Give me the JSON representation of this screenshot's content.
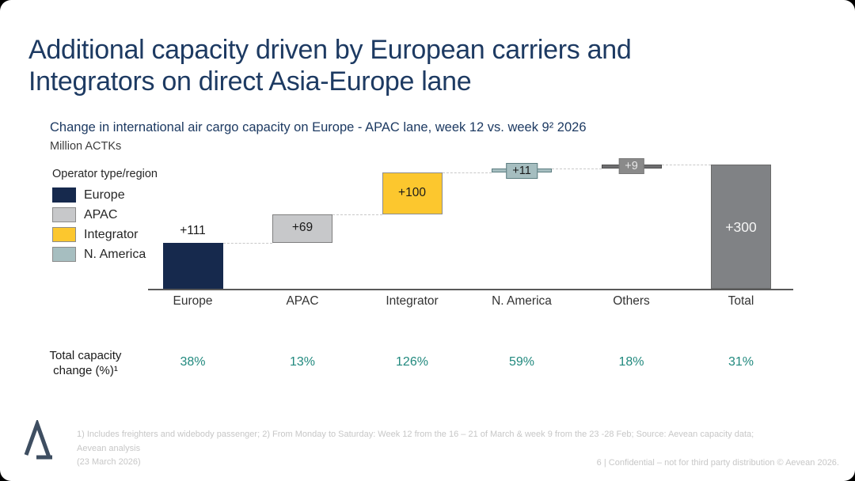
{
  "header": {
    "title_line1": "Additional capacity driven by European carriers and",
    "title_line2": "Integrators on direct Asia-Europe lane"
  },
  "chart_data": {
    "type": "bar",
    "subtype": "waterfall",
    "title": "Change in international air cargo capacity on Europe - APAC lane, week 12 vs. week 9² 2026",
    "unit_label": "Million ACTKs",
    "ylim": [
      0,
      300
    ],
    "grid": false,
    "legend": {
      "title": "Operator type/region",
      "position": "left",
      "items": [
        {
          "label": "Europe",
          "color": "#16294d",
          "border": ""
        },
        {
          "label": "APAC",
          "color": "#c7c8ca",
          "border": "#8c8c8c"
        },
        {
          "label": "Integrator",
          "color": "#fcc72e",
          "border": "#8c8c8c"
        },
        {
          "label": "N. America",
          "color": "#a6bec0",
          "border": "#8c8c8c"
        }
      ]
    },
    "categories": [
      "Europe",
      "APAC",
      "Integrator",
      "N. America",
      "Others",
      "Total"
    ],
    "bars": [
      {
        "category": "Europe",
        "value": 111,
        "label": "+111",
        "color": "#16294d",
        "border": "",
        "label_style": "above",
        "label_color": "#1a1a1a"
      },
      {
        "category": "APAC",
        "value": 69,
        "label": "+69",
        "color": "#c7c8ca",
        "border": "#7f7f7f",
        "label_style": "inside",
        "label_color": "#1a1a1a"
      },
      {
        "category": "Integrator",
        "value": 100,
        "label": "+100",
        "color": "#fcc72e",
        "border": "#8c8c8c",
        "label_style": "inside",
        "label_color": "#1a1a1a"
      },
      {
        "category": "N. America",
        "value": 11,
        "label": "+11",
        "color": "#a6bec0",
        "border": "#5c7d80",
        "label_style": "chip",
        "chip_bg": "#a6bec0",
        "chip_border": "#5c7d80",
        "label_color": "#1a1a1a"
      },
      {
        "category": "Others",
        "value": 9,
        "label": "+9",
        "color": "#6e6e70",
        "border": "#4d4d4d",
        "label_style": "chip",
        "chip_bg": "#8a8a8a",
        "chip_border": "#777777",
        "label_color": "#e8e8e8"
      },
      {
        "category": "Total",
        "value": 300,
        "label": "+300",
        "color": "#808285",
        "border": "#6a6a6a",
        "label_style": "inside",
        "label_color": "#f5f5f5",
        "is_total": true
      }
    ],
    "pct_row": {
      "label": "Total capacity\nchange (%)¹",
      "color": "#21897e",
      "values": [
        "38%",
        "13%",
        "126%",
        "59%",
        "18%",
        "31%"
      ]
    }
  },
  "footer": {
    "footnote_line1": "1) Includes freighters and widebody passenger; 2) From Monday to Saturday: Week 12 from the 16 – 21 of March & week 9 from the 23 -28 Feb; Source: Aevean capacity data; Aevean analysis",
    "footnote_line2": "(23 March 2026)",
    "page_info": "6 | Confidential – not for third party distribution © Aevean 2026."
  }
}
